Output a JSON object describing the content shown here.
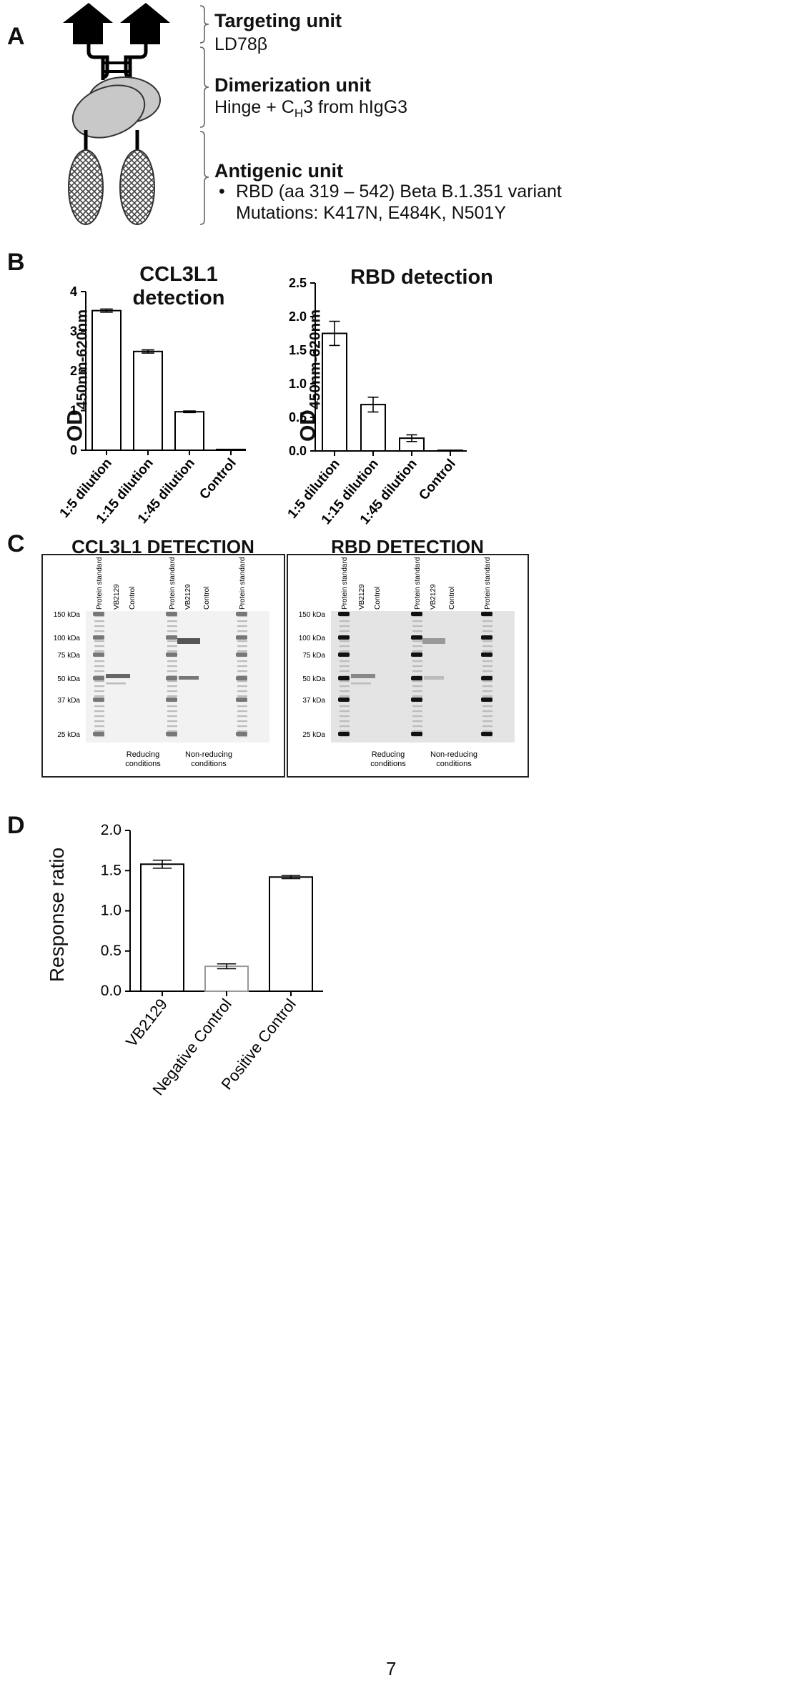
{
  "panelA": {
    "letter": "A",
    "targeting": {
      "title": "Targeting unit",
      "sub": "LD78β"
    },
    "dimerization": {
      "title": "Dimerization unit",
      "sub_pre": "Hinge + C",
      "sub_subscript": "H",
      "sub_post": "3 from hIgG3"
    },
    "antigenic": {
      "title": "Antigenic unit",
      "bullet": "•",
      "line1": "RBD (aa 319 – 542) Beta B.1.351 variant",
      "line2": "Mutations: K417N, E484K, N501Y"
    }
  },
  "panelB": {
    "letter": "B",
    "ylabel_main": "OD",
    "ylabel_sub": "450nm-620nm"
  },
  "panelC": {
    "letter": "C",
    "left": {
      "title": "CCL3L1 DETECTION",
      "lanes": [
        "Protein standard",
        "VB2129",
        "Control",
        "Protein standard",
        "VB2129",
        "Control",
        "Protein standard"
      ],
      "markers": [
        "150 kDa",
        "100 kDa",
        "75 kDa",
        "50 kDa",
        "37 kDa",
        "25 kDa"
      ],
      "conditions": [
        "Reducing conditions",
        "Non-reducing conditions"
      ]
    },
    "right": {
      "title": "RBD DETECTION",
      "lanes": [
        "Protein standard",
        "VB2129",
        "Control",
        "Protein standard",
        "VB2129",
        "Control",
        "Protein standard"
      ],
      "markers": [
        "150 kDa",
        "100 kDa",
        "75 kDa",
        "50 kDa",
        "37 kDa",
        "25 kDa"
      ],
      "conditions": [
        "Reducing conditions",
        "Non-reducing conditions"
      ]
    }
  },
  "panelD": {
    "letter": "D"
  },
  "page_number": "7",
  "chart_data": [
    {
      "type": "bar",
      "title": "CCL3L1 detection",
      "ylabel": "OD450nm-620nm",
      "categories": [
        "1:5 dilution",
        "1:15 dilution",
        "1:45 dilution",
        "Control"
      ],
      "values": [
        3.52,
        2.49,
        0.97,
        0.02
      ],
      "errors": [
        0.04,
        0.04,
        0.02,
        0.0
      ],
      "ylim": [
        0,
        4
      ],
      "yticks": [
        "0",
        "1",
        "2",
        "3",
        "4"
      ]
    },
    {
      "type": "bar",
      "title": "RBD detection",
      "ylabel": "OD450nm-620nm",
      "categories": [
        "1:5 dilution",
        "1:15 dilution",
        "1:45 dilution",
        "Control"
      ],
      "values": [
        1.75,
        0.69,
        0.19,
        0.01
      ],
      "errors": [
        0.18,
        0.11,
        0.05,
        0.0
      ],
      "ylim": [
        0,
        2.5
      ],
      "yticks": [
        "0.0",
        "0.5",
        "1.0",
        "1.5",
        "2.0",
        "2.5"
      ]
    },
    {
      "type": "bar",
      "title": "",
      "ylabel": "Response ratio",
      "categories": [
        "VB2129",
        "Negative Control",
        "Positive Control"
      ],
      "values": [
        1.58,
        0.31,
        1.42
      ],
      "errors": [
        0.05,
        0.03,
        0.02
      ],
      "ylim": [
        0,
        2.0
      ],
      "yticks": [
        "0.0",
        "0.5",
        "1.0",
        "1.5",
        "2.0"
      ]
    }
  ]
}
